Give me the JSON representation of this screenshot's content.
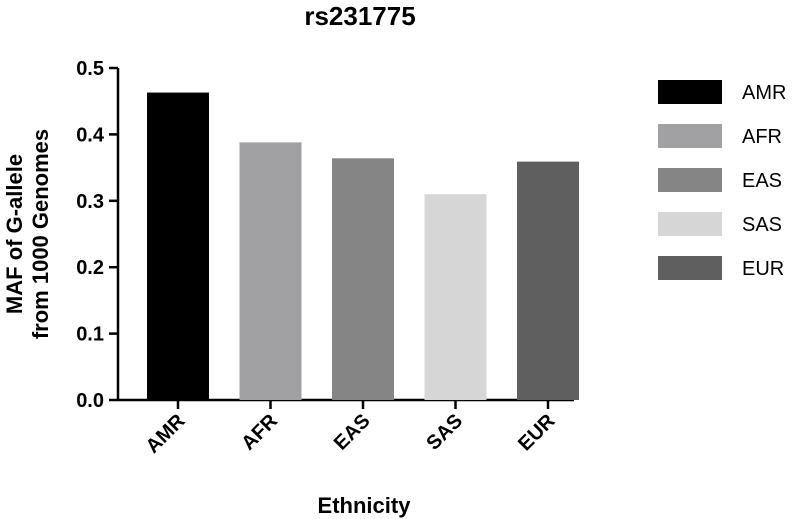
{
  "chart_data": {
    "type": "bar",
    "title": "rs231775",
    "xlabel": "Ethnicity",
    "ylabel_lines": [
      "MAF of G-allele",
      "from 1000 Genomes"
    ],
    "categories": [
      "AMR",
      "AFR",
      "EAS",
      "SAS",
      "EUR"
    ],
    "values": [
      0.463,
      0.388,
      0.364,
      0.31,
      0.359
    ],
    "colors": [
      "#000000",
      "#a1a1a4",
      "#858585",
      "#d6d6d6",
      "#5f5f5f"
    ],
    "ylim": [
      0,
      0.5
    ],
    "yticks": [
      "0.0",
      "0.1",
      "0.2",
      "0.3",
      "0.4",
      "0.5"
    ],
    "grid": false,
    "legend_position": "right",
    "legend": [
      "AMR",
      "AFR",
      "EAS",
      "SAS",
      "EUR"
    ]
  }
}
